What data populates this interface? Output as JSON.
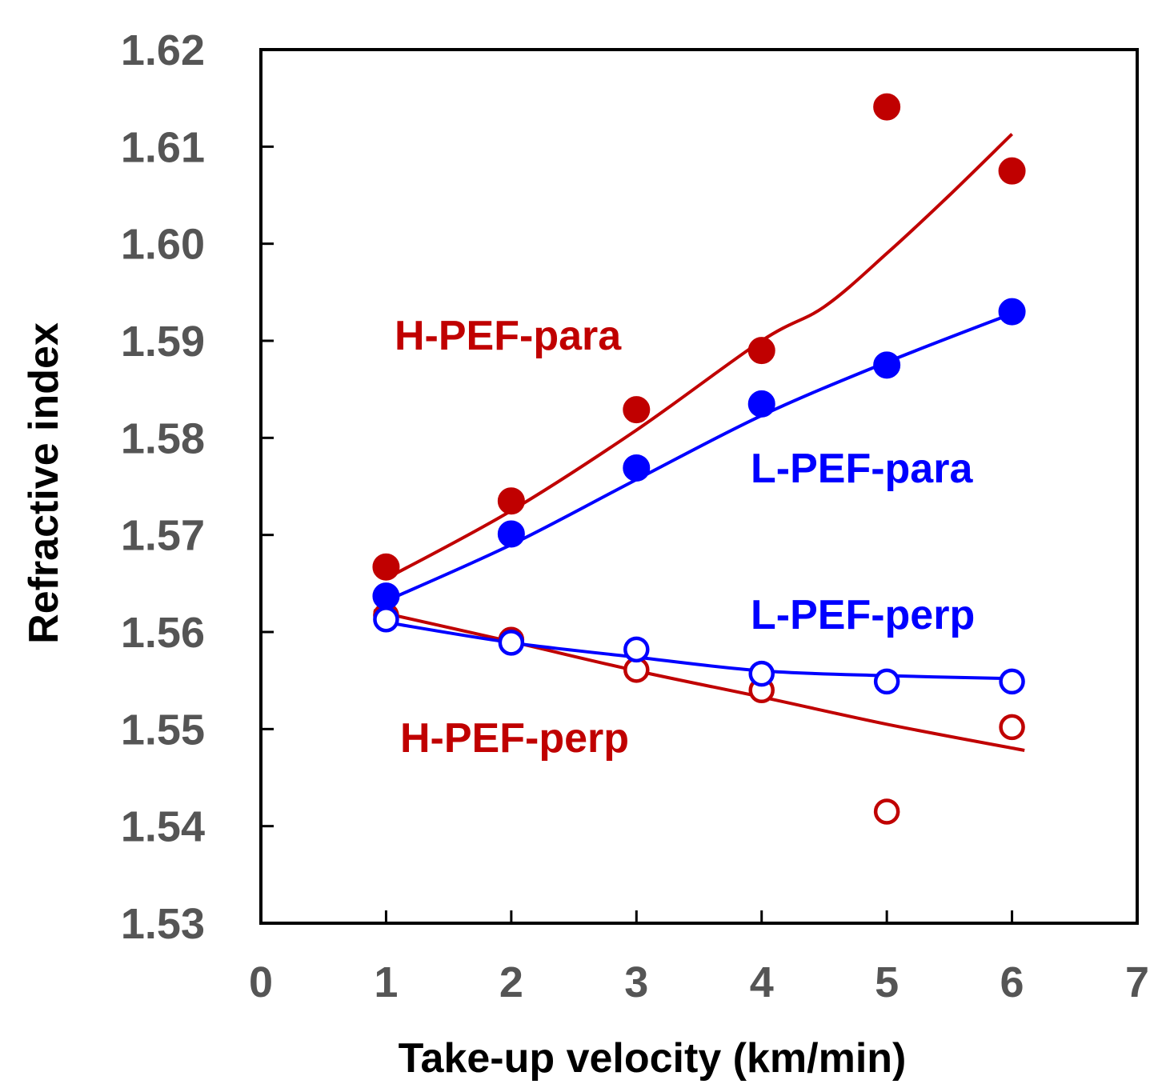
{
  "chart_data": {
    "type": "scatter",
    "title": "",
    "xlabel": "Take-up velocity (km/min)",
    "ylabel": "Refractive index",
    "xlim": [
      0,
      7
    ],
    "ylim": [
      1.53,
      1.62
    ],
    "x_ticks": [
      "0",
      "1",
      "2",
      "3",
      "4",
      "5",
      "6",
      "7"
    ],
    "y_ticks": [
      "1.53",
      "1.54",
      "1.55",
      "1.56",
      "1.57",
      "1.58",
      "1.59",
      "1.60",
      "1.61",
      "1.62"
    ],
    "grid": false,
    "series": [
      {
        "name": "H-PEF-para",
        "color": "#c00000",
        "marker": "filled-circle",
        "x": [
          1,
          2,
          3,
          4,
          5,
          6
        ],
        "y": [
          1.5667,
          1.5735,
          1.5829,
          1.589,
          1.6141,
          1.6075
        ],
        "fit_x": [
          1,
          2,
          3,
          4,
          4.5,
          5,
          5.5,
          6
        ],
        "fit_y": [
          1.5655,
          1.5725,
          1.5808,
          1.59,
          1.5935,
          1.599,
          1.605,
          1.6113
        ]
      },
      {
        "name": "L-PEF-para",
        "color": "#0000ff",
        "marker": "filled-circle",
        "x": [
          1,
          2,
          3,
          4,
          5,
          6
        ],
        "y": [
          1.5637,
          1.5701,
          1.5769,
          1.5835,
          1.5875,
          1.593
        ],
        "fit_x": [
          1,
          2,
          3,
          4,
          5,
          6
        ],
        "fit_y": [
          1.5632,
          1.569,
          1.5757,
          1.5823,
          1.5878,
          1.5928
        ]
      },
      {
        "name": "L-PEF-perp",
        "color": "#0000ff",
        "marker": "open-circle",
        "x": [
          1,
          2,
          3,
          4,
          5,
          6
        ],
        "y": [
          1.5613,
          1.5589,
          1.5582,
          1.5557,
          1.5549,
          1.5549
        ],
        "fit_x": [
          1,
          2,
          3,
          4,
          5,
          6
        ],
        "fit_y": [
          1.561,
          1.5589,
          1.5574,
          1.556,
          1.5555,
          1.5552
        ]
      },
      {
        "name": "H-PEF-perp",
        "color": "#c00000",
        "marker": "open-circle",
        "x": [
          1,
          2,
          3,
          4,
          5,
          6
        ],
        "y": [
          1.5617,
          1.5592,
          1.5561,
          1.554,
          1.5415,
          1.5502
        ],
        "fit_x": [
          0.9,
          2,
          3,
          4,
          5,
          6.1
        ],
        "fit_y": [
          1.5622,
          1.559,
          1.556,
          1.5533,
          1.5505,
          1.5478
        ]
      }
    ],
    "labels": [
      {
        "text": "H-PEF-para",
        "series": 0
      },
      {
        "text": "L-PEF-para",
        "series": 1
      },
      {
        "text": "L-PEF-perp",
        "series": 2
      },
      {
        "text": "H-PEF-perp",
        "series": 3
      }
    ]
  }
}
